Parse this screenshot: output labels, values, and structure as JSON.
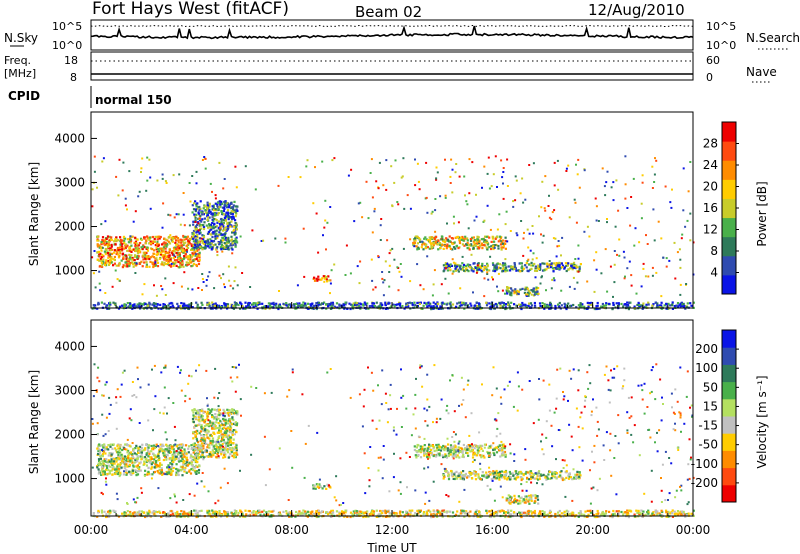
{
  "header": {
    "station": "Fort Hays West (fitACF)",
    "beam": "Beam 02",
    "date": "12/Aug/2010"
  },
  "top_panels": {
    "nsky_label": "N.Sky",
    "nsky_ticks": [
      "10^5",
      "10^0"
    ],
    "nsearch_label": "N.Search",
    "nsearch_ticks": [
      "10^5",
      "10^0"
    ],
    "freq_label": "Freq.",
    "freq_unit": "[MHz]",
    "freq_ticks": [
      "18",
      "8"
    ],
    "nave_label": "Nave",
    "nave_ticks": [
      "60",
      "0"
    ],
    "cpid_label": "CPID",
    "cpid_value": "normal 150"
  },
  "colors": {
    "power_scale": [
      "#0a14e6",
      "#2f4bb0",
      "#2e7a5a",
      "#49b04a",
      "#c8cc2a",
      "#ffcc00",
      "#ff8c00",
      "#ff4a10",
      "#ee0000"
    ],
    "velocity_scale": [
      "#ee0000",
      "#ff4a10",
      "#ff8c00",
      "#ffcc00",
      "#c0c0c0",
      "#b4e060",
      "#49b04a",
      "#2e7a5a",
      "#2f4bb0",
      "#0a14e6"
    ]
  },
  "chart_data": [
    {
      "type": "heatmap",
      "panel": "power",
      "ylabel": "Slant Range [km]",
      "ylim": [
        150,
        4600
      ],
      "y_ticks": [
        "4000",
        "3000",
        "2000",
        "1000"
      ],
      "xlim_hours": [
        0,
        24
      ],
      "colorbar_label": "Power [dB]",
      "colorbar_range": [
        0,
        32
      ],
      "colorbar_ticks": [
        "28",
        "24",
        "20",
        "16",
        "12",
        "8",
        "4"
      ],
      "regions": [
        {
          "t": [
            0.2,
            4.3
          ],
          "r": [
            1100,
            1800
          ],
          "value": 22
        },
        {
          "t": [
            4.0,
            5.8
          ],
          "r": [
            1500,
            2600
          ],
          "value": 8
        },
        {
          "t": [
            8.8,
            9.5
          ],
          "r": [
            780,
            900
          ],
          "value": 24
        },
        {
          "t": [
            12.8,
            16.5
          ],
          "r": [
            1500,
            1800
          ],
          "value": 18
        },
        {
          "t": [
            14.0,
            19.5
          ],
          "r": [
            1000,
            1200
          ],
          "value": 10
        },
        {
          "t": [
            16.5,
            17.8
          ],
          "r": [
            450,
            650
          ],
          "value": 12
        },
        {
          "t": [
            0.0,
            24.0
          ],
          "r": [
            150,
            300
          ],
          "value": 6
        }
      ]
    },
    {
      "type": "heatmap",
      "panel": "velocity",
      "ylabel": "Slant Range [km]",
      "ylim": [
        150,
        4600
      ],
      "y_ticks": [
        "4000",
        "3000",
        "2000",
        "1000"
      ],
      "xlim_hours": [
        0,
        24
      ],
      "xlabel": "Time UT",
      "x_ticks": [
        "00:00",
        "04:00",
        "08:00",
        "12:00",
        "16:00",
        "20:00",
        "00:00"
      ],
      "colorbar_label": "Velocity [m s⁻¹]",
      "colorbar_range": [
        -250,
        250
      ],
      "colorbar_ticks": [
        "200",
        "100",
        "50",
        "15",
        "-15",
        "-50",
        "-100",
        "-200"
      ],
      "regions": [
        {
          "t": [
            0.2,
            4.3
          ],
          "r": [
            1100,
            1800
          ],
          "value": 0
        },
        {
          "t": [
            4.0,
            5.8
          ],
          "r": [
            1500,
            2600
          ],
          "value": -5
        },
        {
          "t": [
            8.8,
            9.5
          ],
          "r": [
            780,
            900
          ],
          "value": 0
        },
        {
          "t": [
            12.8,
            16.5
          ],
          "r": [
            1500,
            1800
          ],
          "value": 0
        },
        {
          "t": [
            14.0,
            19.5
          ],
          "r": [
            1000,
            1200
          ],
          "value": 5
        },
        {
          "t": [
            16.5,
            17.8
          ],
          "r": [
            450,
            650
          ],
          "value": 0
        },
        {
          "t": [
            0.0,
            24.0
          ],
          "r": [
            150,
            300
          ],
          "value": -40
        }
      ]
    }
  ]
}
